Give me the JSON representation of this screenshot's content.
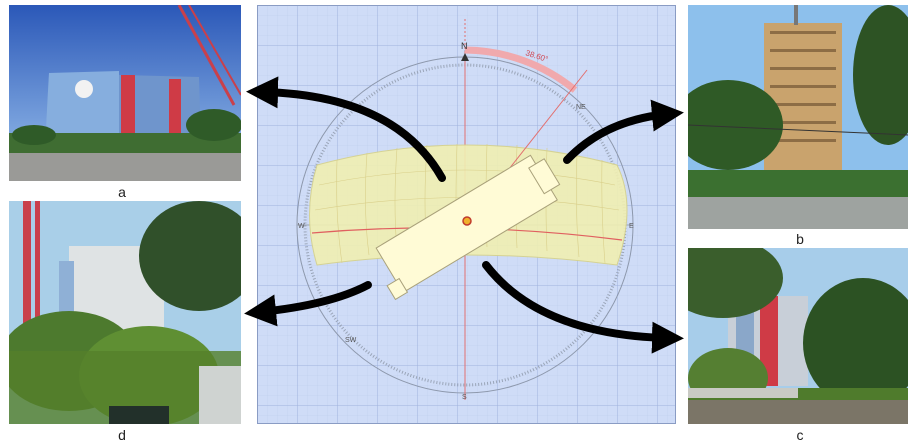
{
  "figure": {
    "labels": {
      "a": "a",
      "b": "b",
      "c": "c",
      "d": "d"
    },
    "compass": {
      "north": "N",
      "south": "S",
      "east": "E",
      "west": "W",
      "northeast": "NE",
      "southwest": "SW",
      "angle_label": "38.60°"
    },
    "colors": {
      "grid_bg": "#cfdcf7",
      "grid_line": "#aebfe4",
      "sunpath_fill": "#f1efb2",
      "building_fill": "#fffbd6",
      "arrow": "#000000",
      "north_line": "#e27070"
    }
  }
}
